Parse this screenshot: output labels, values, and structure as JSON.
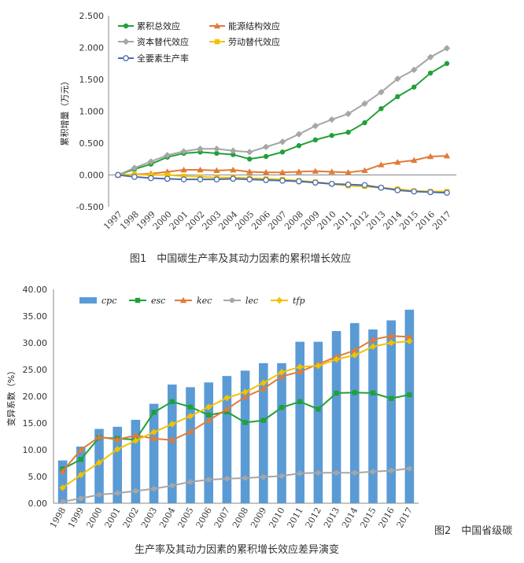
{
  "figure1": {
    "caption": "图1　中国碳生产率及其动力因素的累积增长效应",
    "chart_data": {
      "type": "line",
      "ylabel": "累积增量（万元）",
      "xlabel": "",
      "ylim": [
        -0.5,
        2.5
      ],
      "yticks": [
        "-0.500",
        "0.000",
        "0.500",
        "1.000",
        "1.500",
        "2.000",
        "2.500"
      ],
      "ytick_values": [
        -0.5,
        0,
        0.5,
        1,
        1.5,
        2,
        2.5
      ],
      "x": [
        "1997",
        "1998",
        "1999",
        "2000",
        "2001",
        "2002",
        "2003",
        "2004",
        "2005",
        "2006",
        "2007",
        "2008",
        "2009",
        "2010",
        "2011",
        "2012",
        "2013",
        "2014",
        "2015",
        "2016",
        "2017"
      ],
      "series": [
        {
          "name": "累积总效应",
          "color": "#21a038",
          "marker": "circle",
          "values": [
            0,
            0.09,
            0.17,
            0.28,
            0.34,
            0.36,
            0.34,
            0.32,
            0.25,
            0.29,
            0.36,
            0.46,
            0.55,
            0.62,
            0.67,
            0.82,
            1.04,
            1.23,
            1.38,
            1.6,
            1.75
          ]
        },
        {
          "name": "能源结构效应",
          "color": "#e07b39",
          "marker": "triangle",
          "values": [
            0,
            0.01,
            0.02,
            0.05,
            0.08,
            0.08,
            0.07,
            0.08,
            0.05,
            0.04,
            0.04,
            0.05,
            0.06,
            0.05,
            0.04,
            0.07,
            0.16,
            0.2,
            0.23,
            0.29,
            0.3
          ]
        },
        {
          "name": "资本替代效应",
          "color": "#a6a6a6",
          "marker": "diamond",
          "values": [
            0,
            0.11,
            0.21,
            0.31,
            0.37,
            0.41,
            0.41,
            0.38,
            0.36,
            0.44,
            0.52,
            0.64,
            0.77,
            0.87,
            0.96,
            1.12,
            1.3,
            1.51,
            1.65,
            1.85,
            1.99
          ]
        },
        {
          "name": "劳动替代效应",
          "color": "#f2c200",
          "marker": "square",
          "values": [
            0,
            0.01,
            0.0,
            0.0,
            -0.02,
            -0.03,
            -0.04,
            -0.04,
            -0.05,
            -0.06,
            -0.07,
            -0.09,
            -0.11,
            -0.14,
            -0.17,
            -0.18,
            -0.2,
            -0.22,
            -0.25,
            -0.26,
            -0.26
          ]
        },
        {
          "name": "全要素生产率",
          "color": "#4b6da9",
          "marker": "hollow-circle",
          "values": [
            0,
            -0.03,
            -0.05,
            -0.06,
            -0.07,
            -0.07,
            -0.07,
            -0.06,
            -0.07,
            -0.08,
            -0.09,
            -0.1,
            -0.12,
            -0.14,
            -0.15,
            -0.16,
            -0.2,
            -0.24,
            -0.26,
            -0.27,
            -0.28
          ]
        }
      ]
    }
  },
  "figure2": {
    "caption_side": "图2　中国省级碳",
    "caption_bottom": "生产率及其动力因素的累积增长效应差异演变",
    "chart_data": {
      "type": "bar",
      "ylabel": "变异系数（%）",
      "xlabel": "",
      "ylim": [
        0,
        40
      ],
      "yticks": [
        "0.00",
        "5.00",
        "10.00",
        "15.00",
        "20.00",
        "25.00",
        "30.00",
        "35.00",
        "40.00"
      ],
      "ytick_values": [
        0,
        5,
        10,
        15,
        20,
        25,
        30,
        35,
        40
      ],
      "categories": [
        "1998",
        "1999",
        "2000",
        "2001",
        "2002",
        "2003",
        "2004",
        "2005",
        "2006",
        "2007",
        "2008",
        "2009",
        "2010",
        "2011",
        "2012",
        "2013",
        "2014",
        "2015",
        "2016",
        "2017"
      ],
      "series": [
        {
          "name": "cpc",
          "kind": "bar",
          "color": "#5b9bd5",
          "values": [
            8.0,
            10.6,
            13.9,
            14.3,
            15.6,
            18.6,
            22.2,
            21.7,
            22.6,
            23.8,
            24.8,
            26.2,
            26.2,
            30.2,
            30.2,
            32.2,
            33.7,
            32.5,
            34.2,
            36.2
          ]
        },
        {
          "name": "esc",
          "kind": "line",
          "color": "#21a038",
          "marker": "square",
          "values": [
            6.4,
            8.2,
            12.3,
            12.1,
            11.9,
            17.0,
            19.0,
            18.0,
            16.5,
            17.1,
            15.1,
            15.5,
            17.9,
            19.0,
            17.6,
            20.6,
            20.7,
            20.6,
            19.6,
            20.3
          ]
        },
        {
          "name": "kec",
          "kind": "line",
          "color": "#e07b39",
          "marker": "triangle",
          "values": [
            6.0,
            10.0,
            12.4,
            11.9,
            12.7,
            12.1,
            11.8,
            13.4,
            15.5,
            17.6,
            19.9,
            21.4,
            23.7,
            24.6,
            26.0,
            27.4,
            28.6,
            30.6,
            31.3,
            31.1
          ]
        },
        {
          "name": "lec",
          "kind": "line",
          "color": "#a6a6a6",
          "marker": "circle",
          "values": [
            0.3,
            0.9,
            1.6,
            1.9,
            2.3,
            2.7,
            3.3,
            4.0,
            4.4,
            4.6,
            4.7,
            4.9,
            5.1,
            5.6,
            5.7,
            5.7,
            5.7,
            5.9,
            6.1,
            6.5
          ]
        },
        {
          "name": "tfp",
          "kind": "line",
          "color": "#f2c200",
          "marker": "diamond",
          "values": [
            2.9,
            5.3,
            7.6,
            10.1,
            11.7,
            13.3,
            14.8,
            16.3,
            18.0,
            19.7,
            20.8,
            22.5,
            24.5,
            25.5,
            25.7,
            26.9,
            27.7,
            29.3,
            30.0,
            30.3
          ]
        }
      ]
    }
  }
}
